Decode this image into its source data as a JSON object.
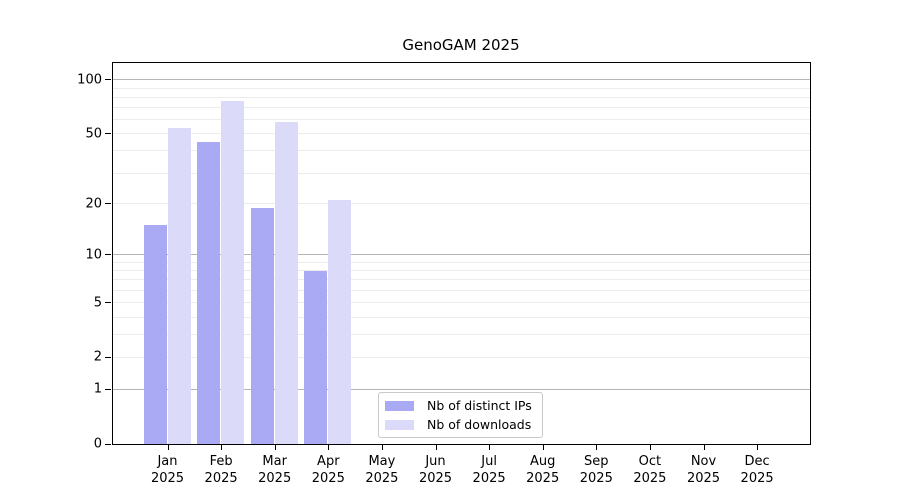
{
  "title": "GenoGAM 2025",
  "chart_data": {
    "type": "bar",
    "title": "GenoGAM 2025",
    "categories": [
      "Jan",
      "Feb",
      "Mar",
      "Apr",
      "May",
      "Jun",
      "Jul",
      "Aug",
      "Sep",
      "Oct",
      "Nov",
      "Dec"
    ],
    "year_label": "2025",
    "series": [
      {
        "name": "Nb of distinct IPs",
        "color": "#a9a9f4",
        "values": [
          15,
          45,
          19,
          8,
          0,
          0,
          0,
          0,
          0,
          0,
          0,
          0
        ]
      },
      {
        "name": "Nb of downloads",
        "color": "#dbdbf9",
        "values": [
          54,
          76,
          58,
          21,
          0,
          0,
          0,
          0,
          0,
          0,
          0,
          0
        ]
      }
    ],
    "y_axis": {
      "scale": "log10(value+1)",
      "ticks": [
        0,
        1,
        2,
        5,
        10,
        20,
        50,
        100
      ],
      "max": 124,
      "major_gridlines": [
        1,
        10,
        100
      ],
      "minor_gridlines": [
        2,
        3,
        4,
        5,
        6,
        7,
        8,
        9,
        20,
        30,
        40,
        50,
        60,
        70,
        80,
        90
      ]
    },
    "legend_position": "bottom-center",
    "colors": {
      "major_grid": "#b5b5b5",
      "minor_grid": "#ececec",
      "axis": "#000000",
      "background": "#ffffff"
    }
  }
}
